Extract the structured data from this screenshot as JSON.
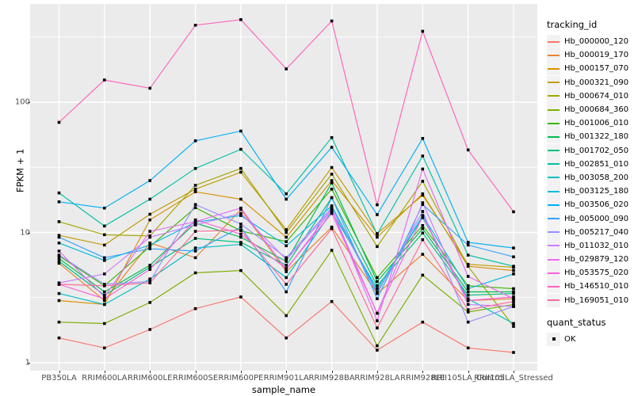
{
  "chart_data": {
    "type": "line",
    "title": "",
    "xlabel": "sample_name",
    "ylabel": "FPKM + 1",
    "y_scale": "log10",
    "y_ticks": [
      "1",
      "10",
      "100"
    ],
    "y_tick_values": [
      1,
      10,
      100
    ],
    "ylim": [
      1,
      500
    ],
    "grid": true,
    "legend_position": "right",
    "panel_bg": "#EBEBEB",
    "gridline_color": "#FFFFFF",
    "axis_text_color": "#4D4D4D",
    "point_shape": "black-square",
    "categories": [
      "PB350LA",
      "RRIM600LA",
      "RRIM600LE",
      "RRIM600SE",
      "RRIM600PE",
      "RRIM901LA",
      "RRIM928BA",
      "RRIM928LA",
      "RRIM928LE",
      "RRII105LA_Control",
      "RRII105LA_Stressed"
    ],
    "series": [
      {
        "name": "Hb_000000_120",
        "color": "#F8766D",
        "values": [
          1.55,
          1.3,
          1.8,
          2.6,
          3.2,
          1.55,
          2.95,
          1.25,
          2.05,
          1.3,
          1.2
        ]
      },
      {
        "name": "Hb_000019_170",
        "color": "#EA8331",
        "values": [
          5.8,
          3.0,
          8.3,
          6.4,
          15.0,
          5.0,
          11.0,
          3.4,
          6.8,
          3.0,
          3.1
        ]
      },
      {
        "name": "Hb_000157_070",
        "color": "#D89000",
        "values": [
          3.0,
          2.8,
          12.5,
          20.5,
          18.0,
          9.2,
          25.0,
          9.2,
          19.8,
          5.5,
          5.1
        ]
      },
      {
        "name": "Hb_000321_090",
        "color": "#C09B00",
        "values": [
          9.5,
          8.0,
          13.8,
          21.5,
          29.0,
          10.5,
          31.5,
          9.8,
          19.3,
          5.7,
          5.4
        ]
      },
      {
        "name": "Hb_000674_010",
        "color": "#A3A500",
        "values": [
          12.1,
          9.6,
          9.4,
          23.0,
          31.0,
          10.0,
          28.0,
          7.8,
          24.7,
          5.5,
          1.9
        ]
      },
      {
        "name": "Hb_000684_360",
        "color": "#7CAE00",
        "values": [
          2.05,
          2.0,
          2.9,
          4.9,
          5.1,
          2.3,
          7.3,
          1.35,
          4.7,
          2.45,
          2.8
        ]
      },
      {
        "name": "Hb_001006_010",
        "color": "#39B600",
        "values": [
          6.6,
          3.9,
          7.8,
          15.5,
          10.3,
          8.5,
          21.5,
          4.5,
          11.3,
          3.9,
          3.7
        ]
      },
      {
        "name": "Hb_001322_180",
        "color": "#00BB4E",
        "values": [
          6.3,
          3.5,
          5.6,
          11.8,
          9.2,
          6.0,
          24.0,
          4.2,
          10.7,
          3.5,
          3.5
        ]
      },
      {
        "name": "Hb_001702_050",
        "color": "#00BF7D",
        "values": [
          6.0,
          3.3,
          5.4,
          9.0,
          8.4,
          5.6,
          18.5,
          3.9,
          9.9,
          3.3,
          3.4
        ]
      },
      {
        "name": "Hb_002851_010",
        "color": "#00C1A3",
        "values": [
          20.1,
          11.2,
          18.0,
          31.0,
          43.5,
          19.8,
          53.5,
          9.7,
          38.6,
          6.7,
          5.5
        ]
      },
      {
        "name": "Hb_003058_200",
        "color": "#00BFC4",
        "values": [
          3.4,
          2.8,
          4.4,
          7.6,
          8.1,
          4.5,
          14.5,
          3.7,
          13.0,
          3.1,
          2.0
        ]
      },
      {
        "name": "Hb_003125_180",
        "color": "#00BAE0",
        "values": [
          8.3,
          6.1,
          8.0,
          12.0,
          13.5,
          7.9,
          16.0,
          3.5,
          13.5,
          3.7,
          4.8
        ]
      },
      {
        "name": "Hb_003506_020",
        "color": "#00B0F6",
        "values": [
          17.2,
          15.4,
          25.0,
          50.5,
          60.0,
          18.0,
          45.0,
          13.7,
          52.7,
          8.4,
          7.6
        ]
      },
      {
        "name": "Hb_005000_090",
        "color": "#35A2FF",
        "values": [
          9.2,
          6.4,
          7.5,
          7.2,
          11.0,
          3.5,
          18.5,
          3.1,
          16.4,
          8.0,
          6.5
        ]
      },
      {
        "name": "Hb_005217_040",
        "color": "#9590FF",
        "values": [
          6.7,
          4.0,
          4.2,
          16.4,
          11.6,
          6.4,
          15.5,
          3.4,
          14.5,
          2.05,
          2.7
        ]
      },
      {
        "name": "Hb_011032_010",
        "color": "#C77CFF",
        "values": [
          4.1,
          4.8,
          9.2,
          11.4,
          14.0,
          6.2,
          15.0,
          2.4,
          16.9,
          2.8,
          2.7
        ]
      },
      {
        "name": "Hb_029879_120",
        "color": "#E76BF3",
        "values": [
          7.2,
          3.2,
          10.2,
          12.1,
          15.4,
          5.2,
          15.0,
          2.1,
          30.7,
          4.6,
          3.1
        ]
      },
      {
        "name": "Hb_053575_020",
        "color": "#FA62DB",
        "values": [
          4.0,
          3.1,
          5.2,
          12.5,
          9.7,
          5.3,
          14.0,
          2.4,
          13.3,
          3.0,
          3.2
        ]
      },
      {
        "name": "Hb_146510_010",
        "color": "#FF62BC",
        "values": [
          70,
          148,
          128,
          390,
          430,
          180,
          420,
          16.3,
          350,
          43,
          14.4
        ]
      },
      {
        "name": "Hb_169051_010",
        "color": "#FF6A98",
        "values": [
          4.0,
          3.9,
          4.1,
          10.2,
          10.4,
          4.0,
          10.7,
          1.85,
          8.8,
          2.55,
          2.95
        ]
      }
    ],
    "legend": {
      "tracking_title": "tracking_id",
      "quant_title": "quant_status",
      "quant_items": [
        {
          "label": "OK",
          "symbol": "black-square"
        }
      ]
    }
  }
}
